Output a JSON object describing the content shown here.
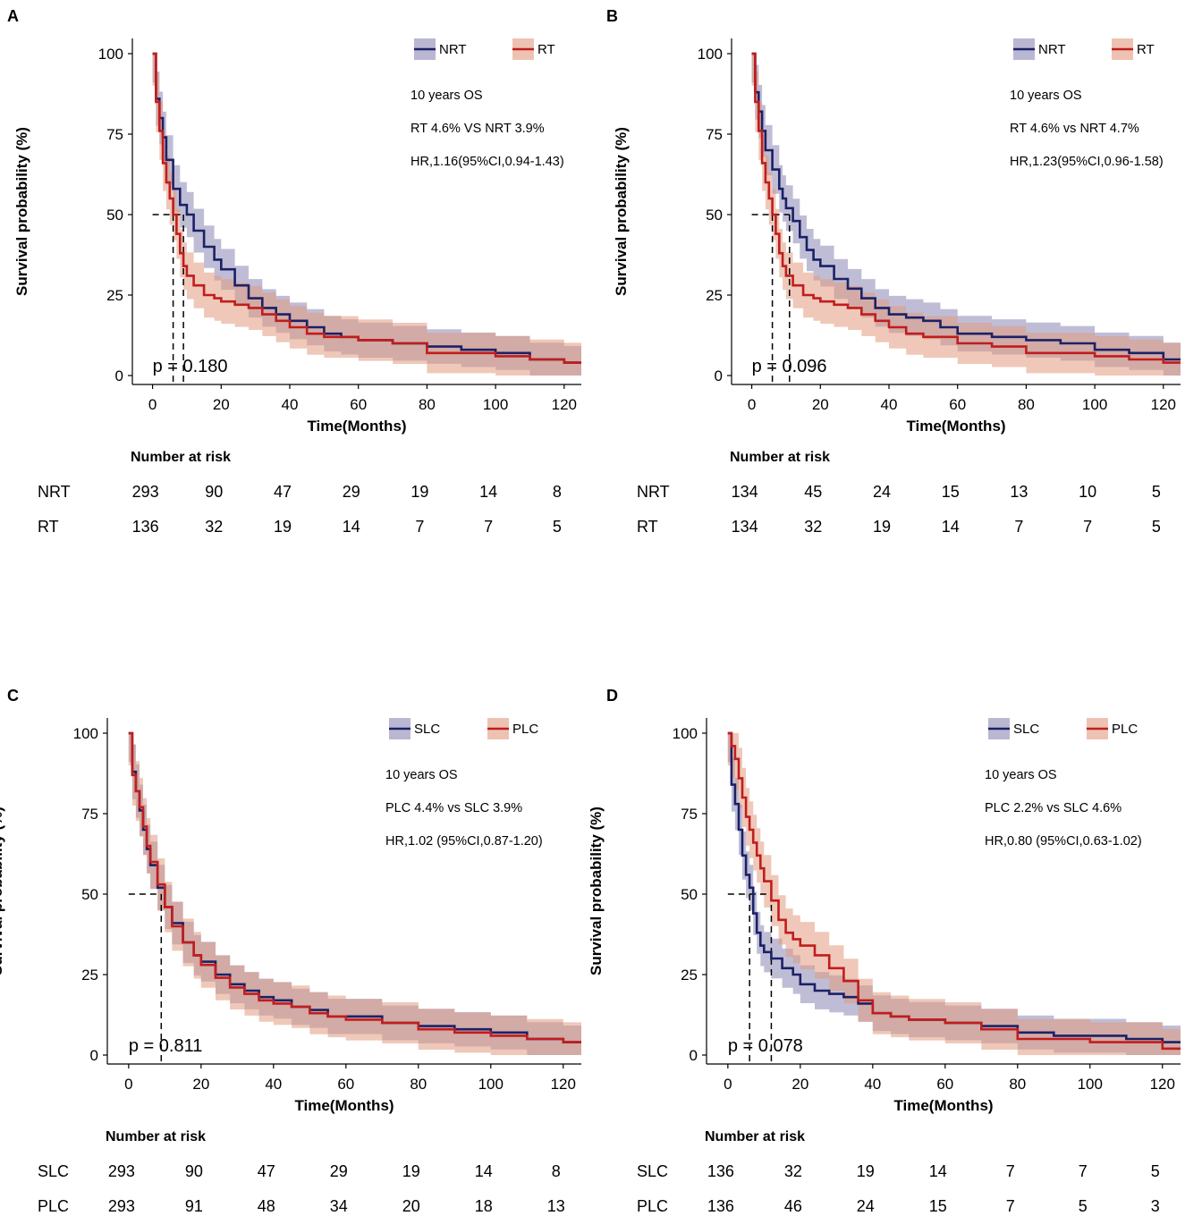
{
  "colors": {
    "series1_line": "#1b2166",
    "series1_band": "#8a87b4",
    "series2_line": "#c11d1d",
    "series2_band": "#e29a80"
  },
  "chart_data": [
    {
      "type": "line",
      "panel_label": "A",
      "ylabel": "Survival probability (%)",
      "xlabel": "Time(Months)",
      "xlim": [
        0,
        125
      ],
      "ylim": [
        0,
        100
      ],
      "x_ticks": [
        0,
        20,
        40,
        60,
        80,
        100,
        120
      ],
      "y_ticks": [
        0,
        25,
        50,
        75,
        100
      ],
      "legend": [
        "NRT",
        "RT"
      ],
      "notes": [
        "10 years OS",
        "RT 4.6% VS NRT 3.9%",
        "HR,1.16(95%CI,0.94-1.43)"
      ],
      "pvalue": "p = 0.180",
      "medians": [
        9,
        6
      ],
      "series": [
        {
          "name": "NRT",
          "x": [
            0,
            1,
            2,
            3,
            4,
            6,
            8,
            10,
            12,
            15,
            18,
            20,
            24,
            28,
            32,
            36,
            40,
            45,
            50,
            55,
            60,
            70,
            80,
            90,
            100,
            110,
            120,
            125
          ],
          "y": [
            100,
            86,
            80,
            74,
            67,
            58,
            53,
            50,
            45,
            40,
            36,
            33,
            28,
            24,
            21,
            19,
            17,
            15,
            13,
            12,
            11,
            10,
            9,
            8,
            7,
            5,
            4,
            4
          ]
        },
        {
          "name": "RT",
          "x": [
            0,
            1,
            2,
            3,
            4,
            5,
            6,
            7,
            8,
            9,
            10,
            12,
            15,
            18,
            20,
            24,
            28,
            32,
            36,
            40,
            45,
            50,
            60,
            70,
            80,
            90,
            100,
            110,
            120,
            125
          ],
          "y": [
            100,
            85,
            76,
            66,
            60,
            55,
            50,
            44,
            38,
            34,
            31,
            28,
            25,
            24,
            23,
            22,
            21,
            19,
            17,
            15,
            13,
            12,
            11,
            10,
            7,
            7,
            6,
            5,
            4,
            4
          ]
        }
      ],
      "risk_table": {
        "title": "Number at risk",
        "times": [
          0,
          20,
          40,
          60,
          80,
          100,
          120
        ],
        "rows": [
          {
            "label": "NRT",
            "values": [
              "293",
              "90",
              "47",
              "29",
              "19",
              "14",
              "8"
            ]
          },
          {
            "label": "RT",
            "values": [
              "136",
              "32",
              "19",
              "14",
              "7",
              "7",
              "5"
            ]
          }
        ]
      }
    },
    {
      "type": "line",
      "panel_label": "B",
      "ylabel": "Survival probability (%)",
      "xlabel": "Time(Months)",
      "xlim": [
        0,
        125
      ],
      "ylim": [
        0,
        100
      ],
      "x_ticks": [
        0,
        20,
        40,
        60,
        80,
        100,
        120
      ],
      "y_ticks": [
        0,
        25,
        50,
        75,
        100
      ],
      "legend": [
        "NRT",
        "RT"
      ],
      "notes": [
        "10 years OS",
        "RT 4.6% vs NRT 4.7%",
        "HR,1.23(95%CI,0.96-1.58)"
      ],
      "pvalue": "p = 0.096",
      "medians": [
        11,
        6
      ],
      "series": [
        {
          "name": "NRT",
          "x": [
            0,
            1,
            2,
            3,
            4,
            6,
            8,
            9,
            10,
            12,
            14,
            16,
            18,
            20,
            24,
            28,
            32,
            36,
            40,
            45,
            50,
            55,
            60,
            70,
            80,
            90,
            100,
            110,
            120,
            125
          ],
          "y": [
            100,
            88,
            82,
            76,
            70,
            64,
            58,
            55,
            52,
            48,
            43,
            39,
            36,
            34,
            30,
            27,
            24,
            21,
            19,
            18,
            17,
            15,
            13,
            12,
            11,
            10,
            8,
            7,
            5,
            5
          ]
        },
        {
          "name": "RT",
          "x": [
            0,
            1,
            2,
            3,
            4,
            5,
            6,
            7,
            8,
            9,
            10,
            12,
            15,
            18,
            20,
            24,
            28,
            32,
            36,
            40,
            45,
            50,
            60,
            70,
            80,
            90,
            100,
            110,
            120,
            125
          ],
          "y": [
            100,
            85,
            76,
            66,
            60,
            55,
            50,
            44,
            38,
            34,
            31,
            28,
            25,
            24,
            23,
            22,
            21,
            19,
            17,
            15,
            13,
            12,
            10,
            9,
            7,
            7,
            6,
            5,
            4,
            4
          ]
        }
      ],
      "risk_table": {
        "title": "Number at risk",
        "times": [
          0,
          20,
          40,
          60,
          80,
          100,
          120
        ],
        "rows": [
          {
            "label": "NRT",
            "values": [
              "134",
              "45",
              "24",
              "15",
              "13",
              "10",
              "5"
            ]
          },
          {
            "label": "RT",
            "values": [
              "134",
              "32",
              "19",
              "14",
              "7",
              "7",
              "5"
            ]
          }
        ]
      }
    },
    {
      "type": "line",
      "panel_label": "C",
      "ylabel": "Survival probability (%)",
      "xlabel": "Time(Months)",
      "xlim": [
        0,
        125
      ],
      "ylim": [
        0,
        100
      ],
      "x_ticks": [
        0,
        20,
        40,
        60,
        80,
        100,
        120
      ],
      "y_ticks": [
        0,
        25,
        50,
        75,
        100
      ],
      "legend": [
        "SLC",
        "PLC"
      ],
      "notes": [
        "10 years OS",
        "PLC 4.4% vs SLC 3.9%",
        "HR,1.02 (95%CI,0.87-1.20)"
      ],
      "pvalue": "p = 0.811",
      "medians": [
        9
      ],
      "series": [
        {
          "name": "SLC",
          "x": [
            0,
            1,
            2,
            3,
            4,
            5,
            6,
            8,
            10,
            12,
            15,
            18,
            20,
            24,
            28,
            32,
            36,
            40,
            45,
            50,
            55,
            60,
            70,
            80,
            90,
            100,
            110,
            120,
            125
          ],
          "y": [
            100,
            88,
            82,
            76,
            70,
            64,
            59,
            52,
            46,
            41,
            35,
            31,
            29,
            25,
            22,
            20,
            18,
            17,
            15,
            14,
            12,
            12,
            10,
            9,
            8,
            7,
            5,
            4,
            4
          ]
        },
        {
          "name": "PLC",
          "x": [
            0,
            1,
            2,
            3,
            4,
            5,
            6,
            8,
            10,
            12,
            15,
            18,
            20,
            24,
            28,
            32,
            36,
            40,
            45,
            50,
            55,
            60,
            70,
            80,
            90,
            100,
            110,
            120,
            125
          ],
          "y": [
            100,
            87,
            82,
            77,
            71,
            65,
            60,
            53,
            46,
            40,
            35,
            31,
            28,
            24,
            21,
            19,
            17,
            16,
            15,
            13,
            12,
            11,
            10,
            8,
            7,
            6,
            5,
            4,
            4
          ]
        }
      ],
      "risk_table": {
        "title": "Number at risk",
        "times": [
          0,
          20,
          40,
          60,
          80,
          100,
          120
        ],
        "rows": [
          {
            "label": "SLC",
            "values": [
              "293",
              "90",
              "47",
              "29",
              "19",
              "14",
              "8"
            ]
          },
          {
            "label": "PLC",
            "values": [
              "293",
              "91",
              "48",
              "34",
              "20",
              "18",
              "13"
            ]
          }
        ]
      }
    },
    {
      "type": "line",
      "panel_label": "D",
      "ylabel": "Survival probability (%)",
      "xlabel": "Time(Months)",
      "xlim": [
        0,
        125
      ],
      "ylim": [
        0,
        100
      ],
      "x_ticks": [
        0,
        20,
        40,
        60,
        80,
        100,
        120
      ],
      "y_ticks": [
        0,
        25,
        50,
        75,
        100
      ],
      "legend": [
        "SLC",
        "PLC"
      ],
      "notes": [
        "10 years OS",
        "PLC 2.2% vs SLC 4.6%",
        "HR,0.80 (95%CI,0.63-1.02)"
      ],
      "pvalue": "p = 0.078",
      "medians": [
        6,
        12
      ],
      "series": [
        {
          "name": "SLC",
          "x": [
            0,
            1,
            2,
            3,
            4,
            5,
            6,
            7,
            8,
            9,
            10,
            12,
            15,
            18,
            20,
            24,
            28,
            32,
            36,
            40,
            45,
            50,
            60,
            70,
            80,
            90,
            100,
            110,
            120,
            125
          ],
          "y": [
            100,
            84,
            78,
            70,
            62,
            56,
            52,
            44,
            38,
            34,
            32,
            30,
            27,
            25,
            22,
            20,
            19,
            18,
            16,
            13,
            12,
            11,
            10,
            9,
            7,
            6,
            6,
            5,
            4,
            4
          ]
        },
        {
          "name": "PLC",
          "x": [
            0,
            1,
            2,
            3,
            4,
            5,
            6,
            7,
            8,
            9,
            10,
            12,
            14,
            16,
            18,
            20,
            24,
            28,
            32,
            36,
            40,
            45,
            50,
            55,
            60,
            70,
            80,
            90,
            100,
            110,
            120,
            125
          ],
          "y": [
            100,
            96,
            92,
            86,
            80,
            74,
            70,
            66,
            62,
            58,
            54,
            48,
            42,
            38,
            36,
            34,
            31,
            27,
            23,
            17,
            13,
            12,
            11,
            11,
            10,
            8,
            5,
            5,
            4,
            4,
            2,
            2
          ]
        }
      ],
      "risk_table": {
        "title": "Number at risk",
        "times": [
          0,
          20,
          40,
          60,
          80,
          100,
          120
        ],
        "rows": [
          {
            "label": "SLC",
            "values": [
              "136",
              "32",
              "19",
              "14",
              "7",
              "7",
              "5"
            ]
          },
          {
            "label": "PLC",
            "values": [
              "136",
              "46",
              "24",
              "15",
              "7",
              "5",
              "3"
            ]
          }
        ]
      }
    }
  ]
}
